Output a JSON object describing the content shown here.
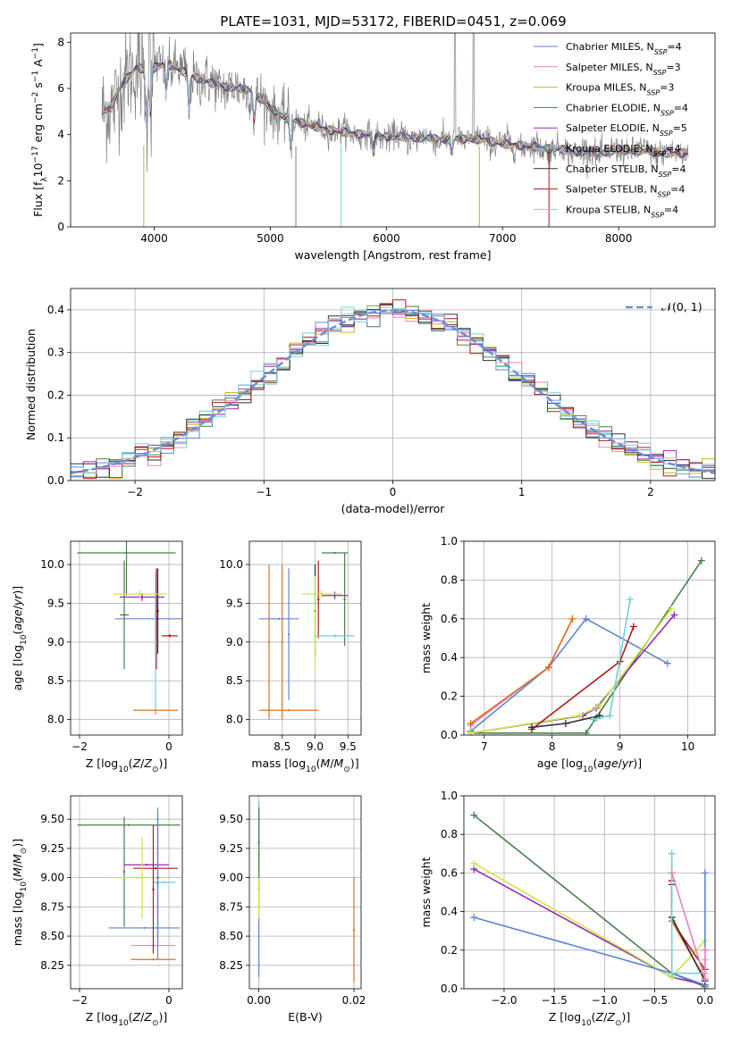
{
  "figure": {
    "title": "PLATE=1031, MJD=53172, FIBERID=0451, z=0.069"
  },
  "colors": {
    "data": "#808080",
    "grid": "#b0b0b0",
    "gauss": "#6b8fd6",
    "models": [
      "#5b86d6",
      "#f080b0",
      "#c8b418",
      "#4a7f4a",
      "#9a2ab8",
      "#6fd0d8",
      "#303030",
      "#b01818",
      "#88c8e8"
    ],
    "scatter": [
      "#5b86d6",
      "#e07020",
      "#4a7f4a",
      "#9a2ab8",
      "#b01818",
      "#6fd0d8",
      "#303030",
      "#c8e840",
      "#f080b0"
    ]
  },
  "chart_data": [
    {
      "id": "spectrum",
      "type": "line",
      "xlabel": "wavelength [Angstrom, rest frame]",
      "ylabel": "Flux [f_λ10^-17 erg cm^-2 s^-1 A^-1]",
      "xlim": [
        3280,
        8830
      ],
      "ylim": [
        0,
        8.4
      ],
      "xticks": [
        4000,
        5000,
        6000,
        7000,
        8000
      ],
      "yticks": [
        0,
        2,
        4,
        6,
        8
      ],
      "grid": false,
      "legend_position": "top-right",
      "legend": [
        {
          "base": "Chabrier MILES, N",
          "sub": "SSP",
          "tail": "=4"
        },
        {
          "base": "Salpeter MILES, N",
          "sub": "SSP",
          "tail": "=3"
        },
        {
          "base": "Kroupa MILES, N",
          "sub": "SSP",
          "tail": "=3"
        },
        {
          "base": "Chabrier ELODIE, N",
          "sub": "SSP",
          "tail": "=4"
        },
        {
          "base": "Salpeter ELODIE, N",
          "sub": "SSP",
          "tail": "=5"
        },
        {
          "base": "Kroupa ELODIE, N",
          "sub": "SSP",
          "tail": "=4"
        },
        {
          "base": "Chabrier STELIB, N",
          "sub": "SSP",
          "tail": "=4"
        },
        {
          "base": "Salpeter STELIB, N",
          "sub": "SSP",
          "tail": "=4"
        },
        {
          "base": "Kroupa STELIB, N",
          "sub": "SSP",
          "tail": "=4"
        }
      ],
      "continuum_anchors": [
        [
          3550,
          4.9
        ],
        [
          3620,
          5.1
        ],
        [
          3720,
          6.2
        ],
        [
          3850,
          6.9
        ],
        [
          3950,
          6.8
        ],
        [
          4100,
          7.1
        ],
        [
          4300,
          6.6
        ],
        [
          4500,
          6.2
        ],
        [
          4700,
          6.0
        ],
        [
          4850,
          5.9
        ],
        [
          5000,
          5.1
        ],
        [
          5200,
          4.6
        ],
        [
          5500,
          4.2
        ],
        [
          5800,
          4.0
        ],
        [
          6100,
          3.9
        ],
        [
          6500,
          3.8
        ],
        [
          6800,
          3.8
        ],
        [
          7000,
          3.6
        ],
        [
          7400,
          3.4
        ],
        [
          7800,
          3.2
        ],
        [
          8000,
          3.3
        ],
        [
          8200,
          3.3
        ],
        [
          8400,
          3.2
        ],
        [
          8600,
          3.2
        ]
      ]
    },
    {
      "id": "residuals",
      "type": "line",
      "xlabel": "(data-model)/error",
      "ylabel": "Normed distribution",
      "xlim": [
        -2.5,
        2.5
      ],
      "ylim": [
        0,
        0.45
      ],
      "xticks": [
        -2,
        -1,
        0,
        1,
        2
      ],
      "yticks": [
        0.0,
        0.1,
        0.2,
        0.3,
        0.4
      ],
      "grid": true,
      "legend_position": "top-right",
      "legend": [
        "𝒩(0, 1)"
      ],
      "bin_width": 0.1
    },
    {
      "id": "age_vs_Z",
      "type": "scatter",
      "xlabel": "Z [log10(Z/Z⊙)]",
      "ylabel": "age  [log10(age/yr)]",
      "xlim": [
        -2.2,
        0.3
      ],
      "ylim": [
        7.8,
        10.3
      ],
      "xticks": [
        -2,
        0
      ],
      "yticks": [
        8.0,
        8.5,
        9.0,
        9.5,
        10.0
      ],
      "grid": true,
      "points": [
        {
          "c": 0,
          "x": -0.25,
          "y": 9.3,
          "xe": 0.95,
          "ye": 0.4
        },
        {
          "c": 1,
          "x": -0.3,
          "y": 8.12,
          "xe": 0.5,
          "ye": 0.05
        },
        {
          "c": 2,
          "x": -0.95,
          "y": 10.15,
          "xe": 1.1,
          "ye": 0.55
        },
        {
          "c": 2,
          "x": -1.0,
          "y": 9.35,
          "xe": 0.1,
          "ye": 0.7
        },
        {
          "c": 3,
          "x": -0.6,
          "y": 9.58,
          "xe": 0.5,
          "ye": 0.05
        },
        {
          "c": 4,
          "x": -0.28,
          "y": 9.3,
          "xe": 0.02,
          "ye": 0.65
        },
        {
          "c": 5,
          "x": -0.3,
          "y": 9.0,
          "xe": 0.02,
          "ye": 0.9
        },
        {
          "c": 6,
          "x": -0.25,
          "y": 9.4,
          "xe": 0.02,
          "ye": 0.55
        },
        {
          "c": 7,
          "x": -0.65,
          "y": 9.62,
          "xe": 0.6,
          "ye": 0.05
        },
        {
          "c": 4,
          "x": 0.02,
          "y": 9.08,
          "xe": 0.18,
          "ye": 0.02
        }
      ]
    },
    {
      "id": "age_vs_mass",
      "type": "scatter",
      "xlabel": "mass [log10(M/M⊙)]",
      "ylabel": "",
      "xlim": [
        8.0,
        9.7
      ],
      "ylim": [
        7.8,
        10.3
      ],
      "xticks": [
        8.5,
        9.0,
        9.5
      ],
      "yticks": [
        8.0,
        8.5,
        9.0,
        9.5,
        10.0
      ],
      "grid": true,
      "points": [
        {
          "c": 0,
          "x": 8.45,
          "y": 9.3,
          "xe": 0.3,
          "ye": 0.0
        },
        {
          "c": 0,
          "x": 8.6,
          "y": 9.1,
          "xe": 0.0,
          "ye": 0.85
        },
        {
          "c": 1,
          "x": 8.6,
          "y": 8.12,
          "xe": 0.45,
          "ye": 0.0
        },
        {
          "c": 1,
          "x": 8.3,
          "y": 9.0,
          "xe": 0.0,
          "ye": 1.0
        },
        {
          "c": 1,
          "x": 8.5,
          "y": 9.0,
          "xe": 0.0,
          "ye": 1.0
        },
        {
          "c": 2,
          "x": 9.3,
          "y": 10.15,
          "xe": 0.2,
          "ye": 0.0
        },
        {
          "c": 2,
          "x": 9.45,
          "y": 9.55,
          "xe": 0.0,
          "ye": 0.6
        },
        {
          "c": 3,
          "x": 9.3,
          "y": 9.6,
          "xe": 0.2,
          "ye": 0.05
        },
        {
          "c": 4,
          "x": 9.05,
          "y": 9.55,
          "xe": 0.0,
          "ye": 0.5
        },
        {
          "c": 5,
          "x": 9.3,
          "y": 9.08,
          "xe": 0.3,
          "ye": 0.02
        },
        {
          "c": 6,
          "x": 9.0,
          "y": 9.4,
          "xe": 0.0,
          "ye": 0.6
        },
        {
          "c": 7,
          "x": 9.1,
          "y": 9.62,
          "xe": 0.3,
          "ye": 0.05
        },
        {
          "c": 7,
          "x": 9.0,
          "y": 9.25,
          "xe": 0.0,
          "ye": 0.6
        }
      ]
    },
    {
      "id": "mass_weight_vs_age",
      "type": "line",
      "xlabel": "age  [log10(age/yr)]",
      "ylabel": "mass weight",
      "xlim": [
        6.7,
        10.4
      ],
      "ylim": [
        0,
        1.0
      ],
      "xticks": [
        7,
        8,
        9,
        10
      ],
      "yticks": [
        0.0,
        0.2,
        0.4,
        0.6,
        0.8,
        1.0
      ],
      "grid": true,
      "series": [
        {
          "c": 0,
          "x": [
            6.8,
            7.95,
            8.5,
            9.7
          ],
          "y": [
            0.02,
            0.35,
            0.6,
            0.37
          ]
        },
        {
          "c": 8,
          "x": [
            6.8,
            7.95,
            8.3
          ],
          "y": [
            0.05,
            0.35,
            0.6
          ]
        },
        {
          "c": 1,
          "x": [
            6.8,
            7.95,
            8.3
          ],
          "y": [
            0.06,
            0.35,
            0.6
          ]
        },
        {
          "c": 2,
          "x": [
            6.8,
            8.5,
            8.65,
            10.2
          ],
          "y": [
            0.01,
            0.01,
            0.09,
            0.9
          ]
        },
        {
          "c": 3,
          "x": [
            6.8,
            8.45,
            8.65,
            9.8
          ],
          "y": [
            0.01,
            0.1,
            0.14,
            0.62
          ]
        },
        {
          "c": 7,
          "x": [
            6.8,
            8.4,
            8.7,
            9.75
          ],
          "y": [
            0.01,
            0.1,
            0.15,
            0.65
          ]
        },
        {
          "c": 4,
          "x": [
            7.7,
            9.0,
            9.2
          ],
          "y": [
            0.03,
            0.38,
            0.56
          ]
        },
        {
          "c": 6,
          "x": [
            7.7,
            8.2,
            8.7
          ],
          "y": [
            0.04,
            0.06,
            0.1
          ]
        },
        {
          "c": 5,
          "x": [
            8.6,
            8.85,
            9.15
          ],
          "y": [
            0.08,
            0.1,
            0.7
          ]
        }
      ]
    },
    {
      "id": "mass_vs_Z",
      "type": "scatter",
      "xlabel": "Z [log10(Z/Z⊙)]",
      "ylabel": "mass [log10(M/M⊙)]",
      "xlim": [
        -2.2,
        0.3
      ],
      "ylim": [
        8.05,
        9.7
      ],
      "xticks": [
        -2,
        0
      ],
      "yticks": [
        8.25,
        8.5,
        8.75,
        9.0,
        9.25,
        9.5
      ],
      "grid": true,
      "points": [
        {
          "c": 0,
          "x": -0.55,
          "y": 8.57,
          "xe": 0.8,
          "ye": 0.0
        },
        {
          "c": 8,
          "x": -0.35,
          "y": 8.42,
          "xe": 0.5,
          "ye": 0.0
        },
        {
          "c": 1,
          "x": -0.35,
          "y": 8.3,
          "xe": 0.5,
          "ye": 0.0
        },
        {
          "c": 2,
          "x": -0.9,
          "y": 9.45,
          "xe": 1.15,
          "ye": 0.0
        },
        {
          "c": 2,
          "x": -1.0,
          "y": 9.05,
          "xe": 0.0,
          "ye": 0.47
        },
        {
          "c": 3,
          "x": -0.5,
          "y": 9.11,
          "xe": 0.5,
          "ye": 0.0
        },
        {
          "c": 4,
          "x": -0.3,
          "y": 9.08,
          "xe": 0.5,
          "ye": 0.0
        },
        {
          "c": 7,
          "x": -0.7,
          "y": 9.0,
          "xe": 0.65,
          "ye": 0.0
        },
        {
          "c": 7,
          "x": -0.6,
          "y": 9.0,
          "xe": 0.0,
          "ye": 0.35
        },
        {
          "c": 5,
          "x": -0.1,
          "y": 8.96,
          "xe": 0.25,
          "ye": 0.0
        },
        {
          "c": 6,
          "x": -0.25,
          "y": 9.0,
          "xe": 0.0,
          "ye": 0.55
        },
        {
          "c": 0,
          "x": -0.25,
          "y": 8.95,
          "xe": 0.0,
          "ye": 0.65
        },
        {
          "c": 4,
          "x": -0.35,
          "y": 8.9,
          "xe": 0.0,
          "ye": 0.55
        }
      ]
    },
    {
      "id": "mass_vs_ebv",
      "type": "scatter",
      "xlabel": "E(B-V)",
      "ylabel": "",
      "xlim": [
        -0.002,
        0.0215
      ],
      "ylim": [
        8.05,
        9.7
      ],
      "xticks": [
        0.0,
        0.02
      ],
      "yticks": [
        8.25,
        8.5,
        8.75,
        9.0,
        9.25,
        9.5
      ],
      "grid": true,
      "points": [
        {
          "c": 0,
          "x": 0.0,
          "y": 8.9,
          "xe": 0.0,
          "ye": 0.75
        },
        {
          "c": 5,
          "x": 0.0,
          "y": 9.2,
          "xe": 0.0,
          "ye": 0.45
        },
        {
          "c": 7,
          "x": 0.0,
          "y": 8.95,
          "xe": 0.0,
          "ye": 0.3
        },
        {
          "c": 2,
          "x": 0.0,
          "y": 9.3,
          "xe": 0.0,
          "ye": 0.3
        },
        {
          "c": 1,
          "x": 0.02,
          "y": 8.55,
          "xe": 0.0,
          "ye": 0.45
        }
      ]
    },
    {
      "id": "mass_weight_vs_Z",
      "type": "line",
      "xlabel": "Z [log10(Z/Z⊙)]",
      "ylabel": "mass weight",
      "xlim": [
        -2.4,
        0.1
      ],
      "ylim": [
        0,
        1.0
      ],
      "xticks": [
        -2.0,
        -1.5,
        -1.0,
        -0.5,
        0.0
      ],
      "yticks": [
        0.0,
        0.2,
        0.4,
        0.6,
        0.8,
        1.0
      ],
      "grid": true,
      "series": [
        {
          "c": 2,
          "x": [
            -2.3,
            -0.33,
            0.0
          ],
          "y": [
            0.9,
            0.08,
            0.01
          ]
        },
        {
          "c": 3,
          "x": [
            -2.3,
            -0.33,
            0.0
          ],
          "y": [
            0.62,
            0.06,
            0.02
          ]
        },
        {
          "c": 7,
          "x": [
            -2.3,
            -0.33,
            0.0
          ],
          "y": [
            0.65,
            0.06,
            0.25
          ]
        },
        {
          "c": 0,
          "x": [
            -2.3,
            -0.33,
            0.0,
            0.0
          ],
          "y": [
            0.37,
            0.08,
            0.02,
            0.6
          ]
        },
        {
          "c": 4,
          "x": [
            -0.33,
            -0.33,
            0.0
          ],
          "y": [
            0.56,
            0.35,
            0.1
          ]
        },
        {
          "c": 1,
          "x": [
            -0.33,
            -0.33,
            0.0
          ],
          "y": [
            0.6,
            0.35,
            0.05
          ]
        },
        {
          "c": 6,
          "x": [
            -0.33,
            -0.33,
            0.0
          ],
          "y": [
            0.54,
            0.37,
            0.04
          ]
        },
        {
          "c": 5,
          "x": [
            -0.33,
            -0.33,
            0.0,
            0.0
          ],
          "y": [
            0.7,
            0.08,
            0.08,
            0.15
          ]
        },
        {
          "c": 8,
          "x": [
            -0.33,
            0.0,
            0.0
          ],
          "y": [
            0.6,
            0.05,
            0.2
          ]
        }
      ]
    }
  ]
}
